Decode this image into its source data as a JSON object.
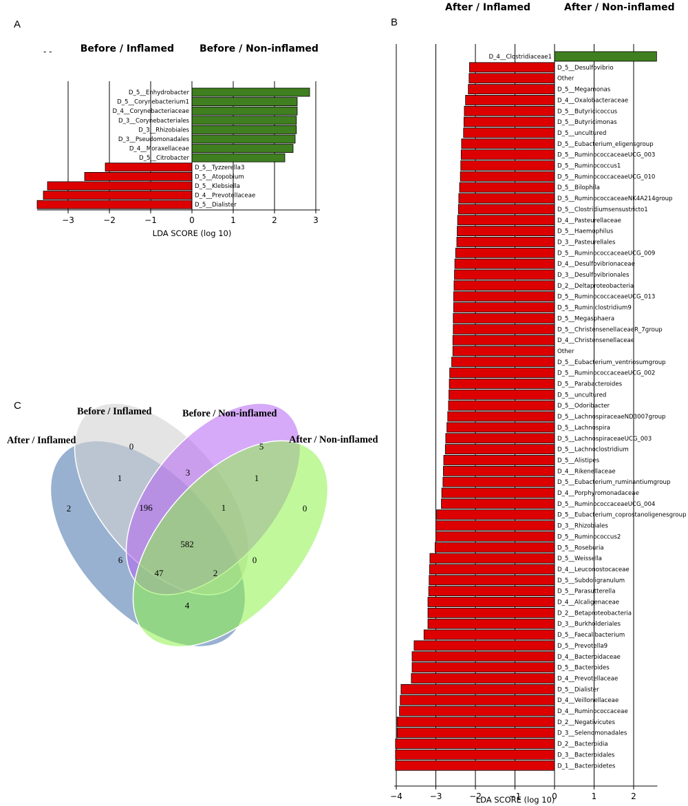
{
  "figure": {
    "panel_labels": [
      "A",
      "B",
      "C"
    ]
  },
  "chart_data": [
    {
      "panel": "A",
      "type": "bar",
      "orientation": "horizontal",
      "group_labels": [
        "Before / Inflamed",
        "Before / Non-inflamed"
      ],
      "legend_marks": "-  -",
      "xlabel": "LDA SCORE (log 10)",
      "xlim": [
        -3.75,
        3.1
      ],
      "xticks": [
        -3,
        -2,
        -1,
        0,
        1,
        2,
        3
      ],
      "xtick_labels": [
        "−3",
        "−2",
        "−1",
        "0",
        "1",
        "2",
        "3"
      ],
      "colors": {
        "positive": "#3f7f1f",
        "negative": "#dd0000"
      },
      "bars": [
        {
          "taxon": "D_5__Enhydrobacter",
          "lda": 2.85
        },
        {
          "taxon": "D_5__Corynebacterium1",
          "lda": 2.55
        },
        {
          "taxon": "D_4__Corynebacteriaceae",
          "lda": 2.55
        },
        {
          "taxon": "D_3__Corynebacteriales",
          "lda": 2.53
        },
        {
          "taxon": "D_3__Rhizobiales",
          "lda": 2.53
        },
        {
          "taxon": "D_3__Pseudomonadales",
          "lda": 2.5
        },
        {
          "taxon": "D_4__Moraxellaceae",
          "lda": 2.45
        },
        {
          "taxon": "D_5__Citrobacter",
          "lda": 2.25
        },
        {
          "taxon": "D_5__Tyzzerella3",
          "lda": -2.1
        },
        {
          "taxon": "D_5__Atopobium",
          "lda": -2.6
        },
        {
          "taxon": "D_5__Klebsiella",
          "lda": -3.5
        },
        {
          "taxon": "D_4__Prevotellaceae",
          "lda": -3.6
        },
        {
          "taxon": "D_5__Dialister",
          "lda": -3.75
        }
      ]
    },
    {
      "panel": "B",
      "type": "bar",
      "orientation": "horizontal",
      "group_labels": [
        "After / Inflamed",
        "After / Non-inflamed"
      ],
      "xlabel": "LDA SCORE (log 10)",
      "xlim": [
        -4.05,
        2.6
      ],
      "xticks": [
        -4,
        -3,
        -2,
        -1,
        0,
        1,
        2
      ],
      "xtick_labels": [
        "−4",
        "−3",
        "−2",
        "−1",
        "0",
        "1",
        "2"
      ],
      "colors": {
        "positive": "#3f7f1f",
        "negative": "#dd0000"
      },
      "bars": [
        {
          "taxon": "D_4__Clostridiaceae1",
          "lda": 2.58
        },
        {
          "taxon": "D_5__Desulfovibrio",
          "lda": -2.15
        },
        {
          "taxon": "Other",
          "lda": -2.16
        },
        {
          "taxon": "D_5__Megamonas",
          "lda": -2.18
        },
        {
          "taxon": "D_4__Oxalobacteraceae",
          "lda": -2.25
        },
        {
          "taxon": "D_5__Butyricicoccus",
          "lda": -2.28
        },
        {
          "taxon": "D_5__Butyricimonas",
          "lda": -2.29
        },
        {
          "taxon": "D_5__uncultured",
          "lda": -2.3
        },
        {
          "taxon": "D_5__Eubacterium_eligensgroup",
          "lda": -2.35
        },
        {
          "taxon": "D_5__RuminococcaceaeUCG_003",
          "lda": -2.36
        },
        {
          "taxon": "D_5__Ruminococcus1",
          "lda": -2.37
        },
        {
          "taxon": "D_5__RuminococcaceaeUCG_010",
          "lda": -2.38
        },
        {
          "taxon": "D_5__Bilophila",
          "lda": -2.4
        },
        {
          "taxon": "D_5__RuminococcaceaeNK4A214group",
          "lda": -2.42
        },
        {
          "taxon": "D_5__Clostridiumsensustricto1",
          "lda": -2.43
        },
        {
          "taxon": "D_4__Pasteurellaceae",
          "lda": -2.45
        },
        {
          "taxon": "D_5__Haemophilus",
          "lda": -2.46
        },
        {
          "taxon": "D_3__Pasteurellales",
          "lda": -2.47
        },
        {
          "taxon": "D_5__RuminococcaceaeUCG_009",
          "lda": -2.5
        },
        {
          "taxon": "D_4__Desulfovibrionaceae",
          "lda": -2.52
        },
        {
          "taxon": "D_3__Desulfovibrionales",
          "lda": -2.53
        },
        {
          "taxon": "D_2__Deltaproteobacteria",
          "lda": -2.54
        },
        {
          "taxon": "D_5__RuminococcaceaeUCG_013",
          "lda": -2.55
        },
        {
          "taxon": "D_5__Ruminiclostridium9",
          "lda": -2.55
        },
        {
          "taxon": "D_5__Megasphaera",
          "lda": -2.56
        },
        {
          "taxon": "D_5__ChristensenellaceaeR_7group",
          "lda": -2.56
        },
        {
          "taxon": "D_4__Christensenellaceae",
          "lda": -2.57
        },
        {
          "taxon": "Other",
          "lda": -2.57
        },
        {
          "taxon": "D_5__Eubacterium_ventriosumgroup",
          "lda": -2.6
        },
        {
          "taxon": "D_5__RuminococcaceaeUCG_002",
          "lda": -2.65
        },
        {
          "taxon": "D_5__Parabacteroides",
          "lda": -2.66
        },
        {
          "taxon": "D_5__uncultured",
          "lda": -2.67
        },
        {
          "taxon": "D_5__Odoribacter",
          "lda": -2.68
        },
        {
          "taxon": "D_5__LachnospiraceaeND3007group",
          "lda": -2.7
        },
        {
          "taxon": "D_5__Lachnospira",
          "lda": -2.72
        },
        {
          "taxon": "D_5__LachnospiraceaeUCG_003",
          "lda": -2.75
        },
        {
          "taxon": "D_5__Lachnoclostridium",
          "lda": -2.76
        },
        {
          "taxon": "D_5__Alistipes",
          "lda": -2.8
        },
        {
          "taxon": "D_4__Rikenellaceae",
          "lda": -2.81
        },
        {
          "taxon": "D_5__Eubacterium_ruminantiumgroup",
          "lda": -2.82
        },
        {
          "taxon": "D_4__Porphyromonadaceae",
          "lda": -2.85
        },
        {
          "taxon": "D_5__RuminococcaceaeUCG_004",
          "lda": -2.86
        },
        {
          "taxon": "D_5__Eubacterium_coprostanoligenesgroup",
          "lda": -2.98
        },
        {
          "taxon": "D_3__Rhizobiales",
          "lda": -3.0
        },
        {
          "taxon": "D_5__Ruminococcus2",
          "lda": -3.0
        },
        {
          "taxon": "D_5__Roseburia",
          "lda": -3.02
        },
        {
          "taxon": "D_5__Weissella",
          "lda": -3.15
        },
        {
          "taxon": "D_4__Leuconostocaceae",
          "lda": -3.16
        },
        {
          "taxon": "D_5__Subdoligranulum",
          "lda": -3.17
        },
        {
          "taxon": "D_5__Parasutterella",
          "lda": -3.18
        },
        {
          "taxon": "D_4__Alcaligenaceae",
          "lda": -3.2
        },
        {
          "taxon": "D_2__Betaproteobacteria",
          "lda": -3.2
        },
        {
          "taxon": "D_3__Burkholderiales",
          "lda": -3.2
        },
        {
          "taxon": "D_5__Faecalibacterium",
          "lda": -3.3
        },
        {
          "taxon": "D_5__Prevotella9",
          "lda": -3.55
        },
        {
          "taxon": "D_4__Bacteroidaceae",
          "lda": -3.6
        },
        {
          "taxon": "D_5__Bacteroides",
          "lda": -3.6
        },
        {
          "taxon": "D_4__Prevotellaceae",
          "lda": -3.62
        },
        {
          "taxon": "D_5__Dialister",
          "lda": -3.88
        },
        {
          "taxon": "D_4__Veillonellaceae",
          "lda": -3.9
        },
        {
          "taxon": "D_4__Ruminococcaceae",
          "lda": -3.92
        },
        {
          "taxon": "D_2__Negativicutes",
          "lda": -3.98
        },
        {
          "taxon": "D_3__Selenomonadales",
          "lda": -3.98
        },
        {
          "taxon": "D_2__Bacteroidia",
          "lda": -4.02
        },
        {
          "taxon": "D_3__Bacteroidales",
          "lda": -4.02
        },
        {
          "taxon": "D_1__Bacteroidetes",
          "lda": -4.02
        }
      ]
    },
    {
      "panel": "C",
      "type": "venn",
      "sets": [
        {
          "name": "After / Inflamed",
          "color": "#7f9dc4"
        },
        {
          "name": "Before / Inflamed",
          "color": "#cfcfcf"
        },
        {
          "name": "Before / Non-inflamed",
          "color": "#b565f2"
        },
        {
          "name": "After / Non-inflamed",
          "color": "#8ef24b"
        }
      ],
      "regions": [
        {
          "sets": [
            "Before / Inflamed"
          ],
          "count": 0
        },
        {
          "sets": [
            "Before / Non-inflamed"
          ],
          "count": 5
        },
        {
          "sets": [
            "After / Inflamed"
          ],
          "count": 2
        },
        {
          "sets": [
            "After / Non-inflamed"
          ],
          "count": 0
        },
        {
          "sets": [
            "After / Inflamed",
            "Before / Inflamed"
          ],
          "count": 1
        },
        {
          "sets": [
            "Before / Inflamed",
            "Before / Non-inflamed"
          ],
          "count": 3
        },
        {
          "sets": [
            "Before / Non-inflamed",
            "After / Non-inflamed"
          ],
          "count": 1
        },
        {
          "sets": [
            "After / Inflamed",
            "Before / Inflamed",
            "Before / Non-inflamed"
          ],
          "count": 196
        },
        {
          "sets": [
            "Before / Inflamed",
            "Before / Non-inflamed",
            "After / Non-inflamed"
          ],
          "count": 1
        },
        {
          "sets": [
            "After / Inflamed",
            "Before / Inflamed",
            "Before / Non-inflamed",
            "After / Non-inflamed"
          ],
          "count": 582
        },
        {
          "sets": [
            "After / Inflamed",
            "Before / Non-inflamed"
          ],
          "count": 6
        },
        {
          "sets": [
            "Before / Inflamed",
            "After / Non-inflamed"
          ],
          "count": 0
        },
        {
          "sets": [
            "After / Inflamed",
            "Before / Non-inflamed",
            "After / Non-inflamed"
          ],
          "count": 47
        },
        {
          "sets": [
            "After / Inflamed",
            "Before / Inflamed",
            "After / Non-inflamed"
          ],
          "count": 2
        },
        {
          "sets": [
            "After / Inflamed",
            "After / Non-inflamed"
          ],
          "count": 4
        }
      ]
    }
  ]
}
